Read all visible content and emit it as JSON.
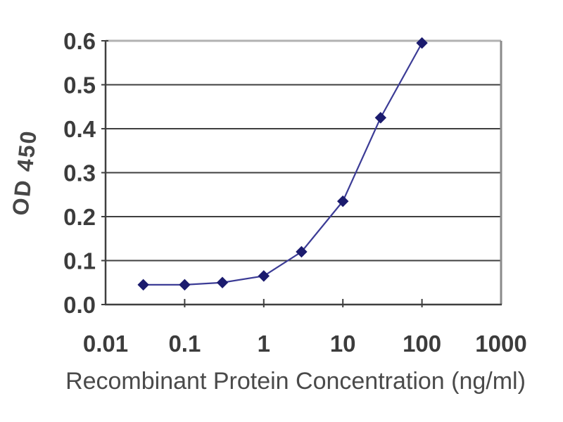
{
  "chart_data": {
    "type": "line",
    "title": "",
    "xlabel": "Recombinant Protein Concentration (ng/ml)",
    "ylabel": "OD 450",
    "x_scale": "log",
    "xlim": [
      0.01,
      1000
    ],
    "ylim": [
      0.0,
      0.6
    ],
    "x_ticks": [
      0.01,
      0.1,
      1,
      10,
      100,
      1000
    ],
    "x_tick_labels": [
      "0.01",
      "0.1",
      "1",
      "10",
      "100",
      "1000"
    ],
    "y_ticks": [
      0.0,
      0.1,
      0.2,
      0.3,
      0.4,
      0.5,
      0.6
    ],
    "y_tick_labels": [
      "0.0",
      "0.1",
      "0.2",
      "0.3",
      "0.4",
      "0.5",
      "0.6"
    ],
    "grid": "horizontal",
    "legend": "none",
    "series": [
      {
        "name": "OD 450",
        "marker": "diamond",
        "x": [
          0.03,
          0.1,
          0.3,
          1,
          3,
          10,
          30,
          100
        ],
        "y": [
          0.045,
          0.045,
          0.05,
          0.065,
          0.12,
          0.235,
          0.425,
          0.595
        ]
      }
    ],
    "colors": {
      "line": "#3c3c96",
      "marker": "#1b1b6e",
      "grid": "#3f3f3f",
      "axis": "#3f3f3f",
      "plot_top_border": "#b2b2b2",
      "plot_right_border": "#8a8a8a",
      "text": "#3c3c3c",
      "background": "#ffffff"
    }
  }
}
